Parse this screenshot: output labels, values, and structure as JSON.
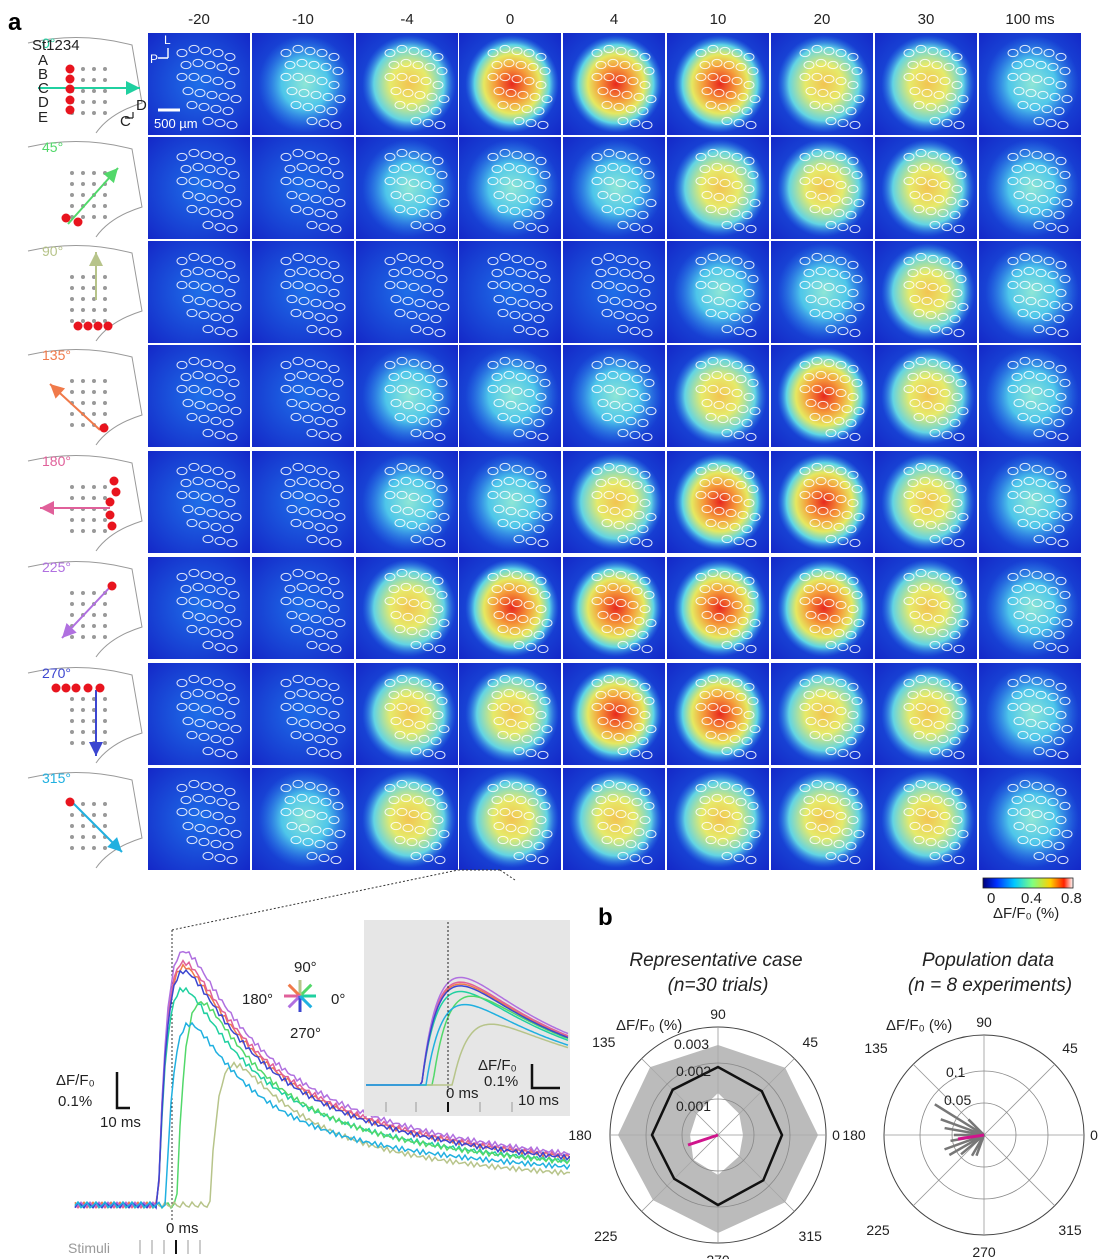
{
  "panel_a": {
    "letter": "a",
    "time_labels": [
      "-20",
      "-10",
      "-4",
      "0",
      "4",
      "10",
      "20",
      "30",
      "100 ms"
    ],
    "rows": [
      {
        "angle": "0°",
        "color": "#20d0a0"
      },
      {
        "angle": "45°",
        "color": "#52d86a"
      },
      {
        "angle": "90°",
        "color": "#b7c48a"
      },
      {
        "angle": "135°",
        "color": "#f07a4a"
      },
      {
        "angle": "180°",
        "color": "#e0609a"
      },
      {
        "angle": "225°",
        "color": "#b070e0"
      },
      {
        "angle": "270°",
        "color": "#3c46d0"
      },
      {
        "angle": "315°",
        "color": "#20b0e0"
      }
    ],
    "schematic": {
      "col_label": "St1234",
      "row_labels": [
        "A",
        "B",
        "C",
        "D",
        "E"
      ],
      "axis_l": "L",
      "axis_p": "P",
      "axis_d": "D",
      "axis_c": "C",
      "scale": "500 µm"
    },
    "colorbar": {
      "ticks": [
        "0",
        "0.4",
        "0.8"
      ],
      "label": "ΔF/F₀ (%)"
    }
  },
  "traces": {
    "ylabel": "ΔF/F₀",
    "scale_y": "0.1%",
    "scale_x": "10 ms",
    "zero": "0 ms",
    "stimuli": "Stimuli",
    "compass": {
      "up": "90°",
      "left": "180°",
      "right": "0°",
      "down": "270°"
    },
    "inset": {
      "ylabel": "ΔF/F₀",
      "scale_y": "0.1%",
      "scale_x": "10 ms",
      "zero": "0 ms"
    }
  },
  "panel_b": {
    "letter": "b",
    "left": {
      "title": "Representative case",
      "subtitle": "(n=30 trials)",
      "rlabel": "ΔF/F₀ (%)",
      "rings": [
        "0.001",
        "0.002",
        "0.003"
      ],
      "angles": [
        "90",
        "45",
        "0",
        "315",
        "270",
        "225",
        "180",
        "135"
      ]
    },
    "right": {
      "title": "Population data",
      "subtitle": "(n = 8 experiments)",
      "rlabel": "ΔF/F₀ (%)",
      "rings": [
        "0.05",
        "0.1"
      ],
      "angles": [
        "90",
        "45",
        "0",
        "315",
        "270",
        "225",
        "180",
        "135"
      ]
    }
  }
}
